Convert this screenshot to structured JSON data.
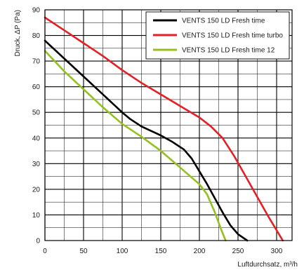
{
  "chart_data": {
    "type": "line",
    "xlabel": "Luftdurchsatz, m³/h",
    "ylabel": "Druck, ΔP (Pa)",
    "xlim": [
      0,
      320
    ],
    "ylim": [
      0,
      90
    ],
    "x_ticks": [
      0,
      50,
      100,
      150,
      200,
      250,
      300
    ],
    "y_ticks": [
      0,
      10,
      20,
      30,
      40,
      50,
      60,
      70,
      80,
      90
    ],
    "grid": true,
    "legend_position": "top-right",
    "series": [
      {
        "name": "VENTS 150 LD Fresh time",
        "color": "#000000",
        "points": [
          [
            0,
            78
          ],
          [
            25,
            71
          ],
          [
            50,
            64
          ],
          [
            75,
            57
          ],
          [
            100,
            50
          ],
          [
            110,
            47.5
          ],
          [
            125,
            44.5
          ],
          [
            150,
            41
          ],
          [
            165,
            38.5
          ],
          [
            180,
            35.5
          ],
          [
            190,
            32
          ],
          [
            200,
            27
          ],
          [
            210,
            22
          ],
          [
            220,
            16.5
          ],
          [
            230,
            11
          ],
          [
            240,
            6
          ],
          [
            250,
            2.5
          ],
          [
            262,
            0
          ]
        ]
      },
      {
        "name": "VENTS 150 LD Fresh time turbo",
        "color": "#e41f25",
        "points": [
          [
            0,
            87
          ],
          [
            25,
            82
          ],
          [
            50,
            77
          ],
          [
            75,
            72
          ],
          [
            100,
            66.5
          ],
          [
            125,
            61.5
          ],
          [
            150,
            57
          ],
          [
            175,
            52.5
          ],
          [
            200,
            48
          ],
          [
            215,
            44.5
          ],
          [
            230,
            40
          ],
          [
            245,
            33
          ],
          [
            260,
            25
          ],
          [
            275,
            17
          ],
          [
            290,
            9
          ],
          [
            302,
            3
          ],
          [
            308,
            0
          ]
        ]
      },
      {
        "name": "VENTS 150 LD Fresh time 12",
        "color": "#95c11f",
        "points": [
          [
            0,
            74
          ],
          [
            25,
            66
          ],
          [
            50,
            59
          ],
          [
            75,
            52
          ],
          [
            100,
            45.5
          ],
          [
            125,
            40.5
          ],
          [
            150,
            35
          ],
          [
            175,
            28.5
          ],
          [
            200,
            22
          ],
          [
            210,
            18
          ],
          [
            220,
            11
          ],
          [
            228,
            4.5
          ],
          [
            234,
            0
          ]
        ]
      }
    ]
  }
}
